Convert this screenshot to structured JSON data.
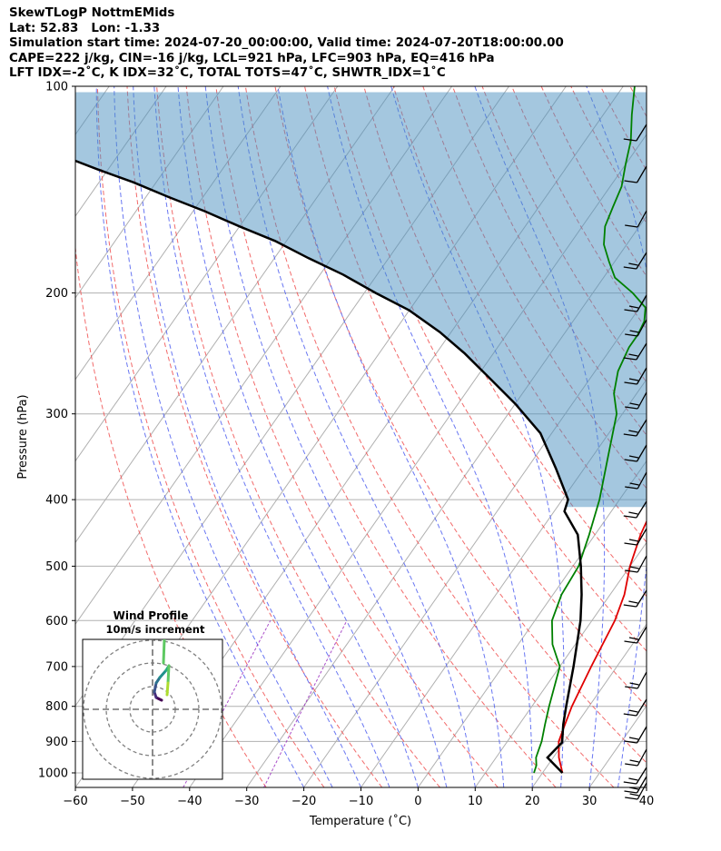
{
  "header": {
    "title": "SkewTLogP NottmEMids",
    "location": "Lat: 52.83   Lon: -1.33",
    "times": "Simulation start time: 2024-07-20_00:00:00, Valid time: 2024-07-20T18:00:00.00",
    "params1": "CAPE=222 j/kg, CIN=-16 j/kg, LCL=921 hPa, LFC=903 hPa, EQ=416 hPa",
    "params2": "LFT IDX=-2˚C, K IDX=32˚C, TOTAL TOTS=47˚C, SHWTR_IDX=1˚C"
  },
  "chart_data": {
    "type": "line",
    "xlabel": "Temperature (˚C)",
    "ylabel": "Pressure (hPa)",
    "xlim": [
      -60,
      40
    ],
    "ylim": [
      1050,
      100
    ],
    "x_ticks": [
      -60,
      -50,
      -40,
      -30,
      -20,
      -10,
      0,
      10,
      20,
      30,
      40
    ],
    "y_ticks": [
      100,
      200,
      300,
      400,
      500,
      600,
      700,
      800,
      900,
      1000
    ],
    "log_pressure_axis": true,
    "skewed_isotherms": true,
    "series": [
      {
        "color": "#e00000",
        "points": [
          [
            23.5,
            1000
          ],
          [
            21,
            950
          ],
          [
            19,
            900
          ],
          [
            18,
            850
          ],
          [
            17,
            800
          ],
          [
            15.5,
            700
          ],
          [
            14,
            600
          ],
          [
            12.5,
            550
          ],
          [
            10,
            500
          ],
          [
            8,
            450
          ],
          [
            6.5,
            400
          ],
          [
            5,
            370
          ],
          [
            3,
            340
          ],
          [
            0,
            310
          ],
          [
            -3,
            290
          ],
          [
            -5.5,
            270
          ],
          [
            -7,
            250
          ],
          [
            -8,
            220
          ],
          [
            -8.5,
            205
          ],
          [
            -8.5,
            198
          ],
          [
            -8,
            190
          ],
          [
            -6,
            180
          ],
          [
            -4,
            160
          ],
          [
            -4,
            150
          ],
          [
            -4,
            140
          ],
          [
            -7,
            130
          ],
          [
            -12,
            120
          ],
          [
            -16,
            110
          ],
          [
            -18,
            106
          ],
          [
            -20,
            102
          ],
          [
            -21,
            100
          ]
        ]
      },
      {
        "color": "#008000",
        "points": [
          [
            18.5,
            1000
          ],
          [
            18,
            975
          ],
          [
            17,
            950
          ],
          [
            16.5,
            925
          ],
          [
            16,
            900
          ],
          [
            14.5,
            850
          ],
          [
            13,
            800
          ],
          [
            10,
            700
          ],
          [
            6,
            650
          ],
          [
            3,
            600
          ],
          [
            1.5,
            550
          ],
          [
            1,
            500
          ],
          [
            -1,
            450
          ],
          [
            -3.5,
            400
          ],
          [
            -7,
            350
          ],
          [
            -11,
            300
          ],
          [
            -14,
            280
          ],
          [
            -16,
            260
          ],
          [
            -17,
            240
          ],
          [
            -17,
            230
          ],
          [
            -17.5,
            220
          ],
          [
            -19,
            210
          ],
          [
            -23,
            200
          ],
          [
            -28,
            190
          ],
          [
            -31,
            180
          ],
          [
            -34,
            170
          ],
          [
            -36,
            160
          ],
          [
            -37,
            150
          ],
          [
            -38,
            140
          ],
          [
            -40,
            130
          ],
          [
            -42,
            120
          ],
          [
            -45,
            110
          ],
          [
            -48,
            100
          ]
        ]
      },
      {
        "color": "#000000",
        "points": [
          [
            23.5,
            1000
          ],
          [
            19,
            950
          ],
          [
            19.7,
            903
          ],
          [
            17.7,
            850
          ],
          [
            16,
            800
          ],
          [
            12.4,
            700
          ],
          [
            8,
            600
          ],
          [
            5,
            550
          ],
          [
            1.4,
            500
          ],
          [
            -3,
            450
          ],
          [
            -8.2,
            416
          ],
          [
            -9,
            400
          ],
          [
            -15,
            360
          ],
          [
            -22,
            320
          ],
          [
            -30,
            290
          ],
          [
            -38,
            265
          ],
          [
            -45,
            245
          ],
          [
            -52,
            228
          ],
          [
            -60,
            212
          ],
          [
            -68,
            200
          ],
          [
            -76,
            188
          ],
          [
            -84,
            178
          ],
          [
            -92,
            168
          ],
          [
            -100,
            160
          ],
          [
            -108,
            152
          ],
          [
            -116,
            145
          ],
          [
            -124,
            138
          ],
          [
            -132,
            132
          ],
          [
            -140,
            126
          ],
          [
            -148,
            120
          ],
          [
            -156,
            115
          ],
          [
            -164,
            110
          ],
          [
            -172,
            105
          ],
          [
            -180,
            101
          ],
          [
            -184,
            100
          ]
        ]
      }
    ],
    "wind_inset": {
      "title": "Wind Profile",
      "subtitle": "10m/s increment"
    }
  }
}
